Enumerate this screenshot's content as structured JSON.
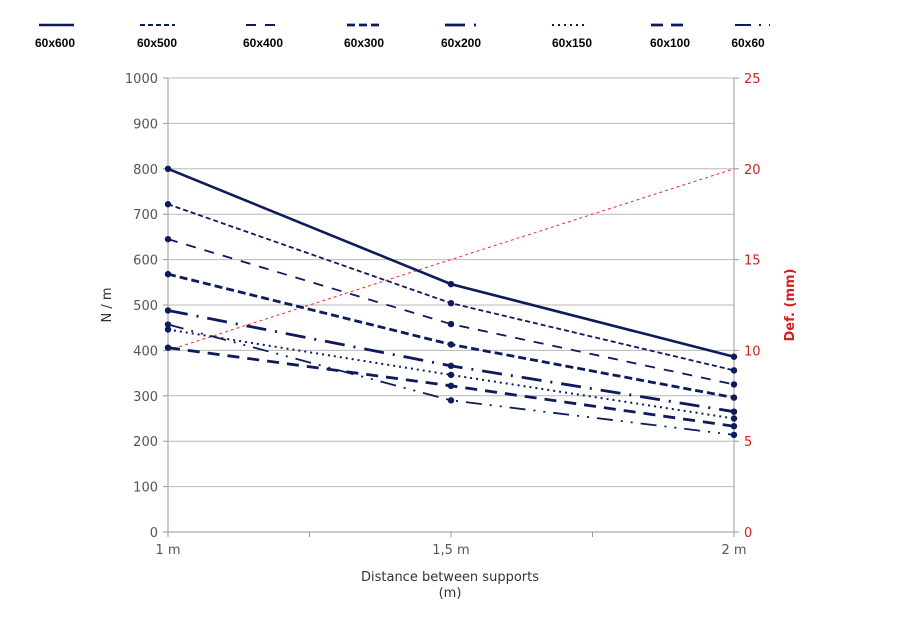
{
  "chart_data": {
    "type": "line",
    "title": "",
    "xlabel": "Distance between supports",
    "xlabel_unit": "(m)",
    "ylabel": "N / m",
    "y2label": "Def. (mm)",
    "categories": [
      "1 m",
      "1,5 m",
      "2 m"
    ],
    "x": [
      1,
      1.5,
      2
    ],
    "ylim": [
      0,
      1000
    ],
    "y2lim": [
      0,
      25
    ],
    "yticks": [
      "0",
      "100",
      "200",
      "300",
      "400",
      "500",
      "600",
      "700",
      "800",
      "900",
      "1000"
    ],
    "y2ticks": [
      "0",
      "5",
      "10",
      "15",
      "20",
      "25"
    ],
    "grid": true,
    "legend_position": "top",
    "series": [
      {
        "name": "60x600",
        "values": [
          800,
          546,
          386
        ],
        "style": "solid",
        "color": "#0d1a5c"
      },
      {
        "name": "60x500",
        "values": [
          722,
          504,
          356
        ],
        "style": "short-dash",
        "color": "#0d1a5c"
      },
      {
        "name": "60x400",
        "values": [
          645,
          458,
          325
        ],
        "style": "dash",
        "color": "#0d1a5c"
      },
      {
        "name": "60x300",
        "values": [
          568,
          413,
          296
        ],
        "style": "heavy-dash",
        "color": "#0d1a5c"
      },
      {
        "name": "60x200",
        "values": [
          488,
          366,
          265
        ],
        "style": "long-dash-dot",
        "color": "#0d1a5c"
      },
      {
        "name": "60x150",
        "values": [
          446,
          346,
          250
        ],
        "style": "dot",
        "color": "#0d1a5c"
      },
      {
        "name": "60x100",
        "values": [
          406,
          322,
          233
        ],
        "style": "medium-dash",
        "color": "#0d1a5c"
      },
      {
        "name": "60x60",
        "values": [
          457,
          290,
          214
        ],
        "style": "long-dash-dot-dot",
        "color": "#0d1a5c"
      }
    ],
    "secondary_series": [
      {
        "name": "Def.",
        "axis": "right",
        "values": [
          10,
          15,
          20
        ],
        "style": "dotted",
        "color": "#e03030"
      }
    ]
  }
}
